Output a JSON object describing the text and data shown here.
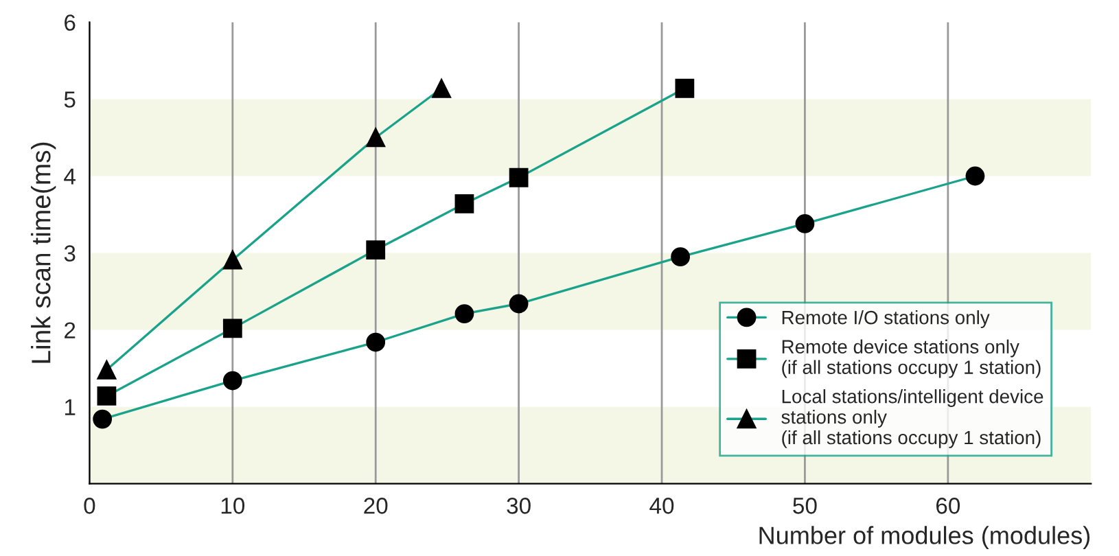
{
  "chart_data": {
    "type": "line",
    "xlabel": "Number of modules (modules)",
    "ylabel": "Link scan time(ms)",
    "xlim": [
      0,
      70
    ],
    "ylim": [
      0,
      6
    ],
    "xticks": [
      0,
      10,
      20,
      30,
      40,
      50,
      60
    ],
    "yticks": [
      1,
      2,
      3,
      4,
      5,
      6
    ],
    "grid": "x",
    "legend": "bottom right",
    "bands": [
      {
        "axis": "y",
        "from": 0,
        "to": 1,
        "color": "#f4f7e6"
      },
      {
        "axis": "y",
        "from": 2,
        "to": 3,
        "color": "#f4f7e6"
      },
      {
        "axis": "y",
        "from": 4,
        "to": 5,
        "color": "#f4f7e6"
      }
    ],
    "series": [
      {
        "name": "Remote I/O stations only",
        "color": "#1aa38a",
        "marker": "circle",
        "x": [
          0.9,
          10,
          20,
          26.2,
          30,
          41.3,
          50,
          61.9
        ],
        "values": [
          0.84,
          1.34,
          1.84,
          2.21,
          2.34,
          2.95,
          3.38,
          4.0
        ]
      },
      {
        "name": "Remote device stations only\n(if all stations occupy 1 station)",
        "color": "#1aa38a",
        "marker": "square",
        "x": [
          1.2,
          10,
          20,
          26.2,
          30,
          41.6
        ],
        "values": [
          1.14,
          2.02,
          3.04,
          3.64,
          3.98,
          5.14
        ]
      },
      {
        "name": "Local stations/intelligent device\nstations only\n(if all stations occupy 1 station)",
        "color": "#1aa38a",
        "marker": "triangle",
        "x": [
          1.2,
          10,
          20,
          24.6
        ],
        "values": [
          1.48,
          2.91,
          4.5,
          5.14
        ]
      }
    ]
  }
}
